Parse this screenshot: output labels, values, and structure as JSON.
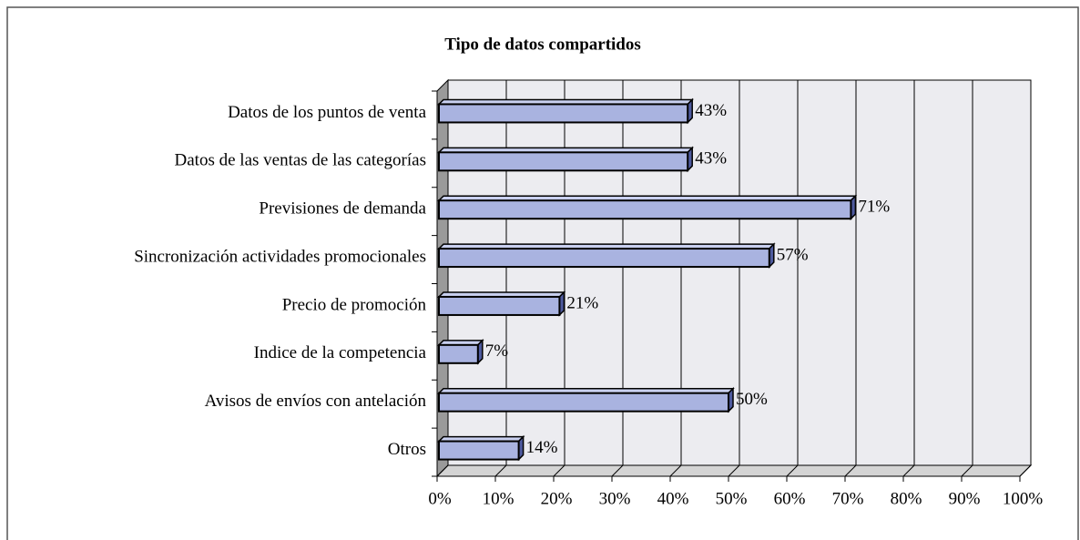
{
  "chart_data": {
    "type": "bar",
    "orientation": "horizontal",
    "title": "Tipo de datos compartidos",
    "categories": [
      "Datos de los puntos de venta",
      "Datos de las ventas de las categorías",
      "Previsiones de demanda",
      "Sincronización actividades promocionales",
      "Precio de promoción",
      "Indice de la competencia",
      "Avisos de envíos con antelación",
      "Otros"
    ],
    "values": [
      43,
      43,
      71,
      57,
      21,
      7,
      50,
      14
    ],
    "value_labels": [
      "43%",
      "43%",
      "71%",
      "57%",
      "21%",
      "7%",
      "50%",
      "14%"
    ],
    "color": "#a9b3e0",
    "xlim": [
      0,
      100
    ],
    "xticks": [
      {
        "value": 0,
        "label": "0%"
      },
      {
        "value": 10,
        "label": "10%"
      },
      {
        "value": 20,
        "label": "20%"
      },
      {
        "value": 30,
        "label": "30%"
      },
      {
        "value": 40,
        "label": "40%"
      },
      {
        "value": 50,
        "label": "50%"
      },
      {
        "value": 60,
        "label": "60%"
      },
      {
        "value": 70,
        "label": "70%"
      },
      {
        "value": 80,
        "label": "80%"
      },
      {
        "value": 90,
        "label": "90%"
      },
      {
        "value": 100,
        "label": "100%"
      }
    ],
    "grid": true
  }
}
